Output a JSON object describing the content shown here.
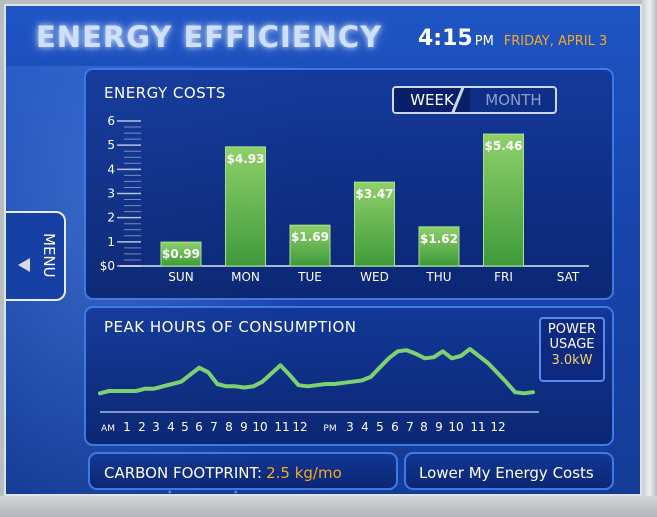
{
  "header": {
    "title": "ENERGY EFFICIENCY",
    "time": "4:15",
    "ampm": "PM",
    "date": "FRIDAY, APRIL 3"
  },
  "menu": {
    "label": "MENU"
  },
  "energy_costs": {
    "title": "ENERGY COSTS",
    "toggle": {
      "week": "WEEK",
      "month": "MONTH",
      "selected": "WEEK"
    }
  },
  "peak_hours": {
    "title": "PEAK HOURS OF CONSUMPTION",
    "power": {
      "line1": "POWER",
      "line2": "USAGE",
      "value": "3.0kW"
    }
  },
  "carbon": {
    "label": "CARBON FOOTPRINT:",
    "value": "2.5 kg/mo"
  },
  "lower_button": {
    "label": "Lower My Energy Costs"
  },
  "colors": {
    "accent": "#f5a91c",
    "bar_top": "#8fd06a",
    "bar_bottom": "#3f9a3a",
    "line": "#7fd070"
  },
  "chart_data": [
    {
      "type": "bar",
      "categories": [
        "SUN",
        "MON",
        "TUE",
        "WED",
        "THU",
        "FRI",
        "SAT"
      ],
      "values": [
        0.99,
        4.93,
        1.69,
        3.47,
        1.62,
        5.46,
        null
      ],
      "data_labels": [
        "$0.99",
        "$4.93",
        "$1.69",
        "$3.47",
        "$1.62",
        "$5.46",
        ""
      ],
      "yticks": [
        "$0",
        "1",
        "2",
        "3",
        "4",
        "5",
        "6"
      ],
      "ylim": [
        0,
        6
      ]
    },
    {
      "type": "line",
      "xticks": [
        "AM",
        "1",
        "2",
        "3",
        "4",
        "5",
        "6",
        "7",
        "8",
        "9",
        "10",
        "11",
        "12",
        "PM",
        "3",
        "4",
        "5",
        "6",
        "7",
        "8",
        "9",
        "10",
        "11",
        "12"
      ],
      "x": [
        0,
        0.5,
        1,
        1.5,
        2,
        2.5,
        3,
        3.5,
        4,
        4.5,
        5,
        5.5,
        6,
        6.5,
        7,
        7.5,
        8,
        8.5,
        9,
        9.5,
        10,
        10.5,
        11,
        11.5,
        12,
        12.5,
        13,
        13.5,
        14,
        14.5,
        15,
        15.5,
        16,
        16.5,
        17,
        17.5,
        18,
        18.5,
        19,
        19.5,
        20,
        20.5,
        21,
        21.5,
        22,
        22.5,
        23,
        23.5,
        24
      ],
      "values": [
        0.5,
        0.6,
        0.6,
        0.6,
        0.6,
        0.7,
        0.7,
        0.8,
        0.9,
        1.0,
        1.3,
        1.6,
        1.4,
        0.9,
        0.8,
        0.8,
        0.75,
        0.8,
        1.0,
        1.35,
        1.7,
        1.3,
        0.85,
        0.8,
        0.85,
        0.9,
        0.9,
        0.95,
        1.0,
        1.05,
        1.2,
        1.6,
        2.0,
        2.3,
        2.35,
        2.2,
        2.0,
        2.05,
        2.3,
        2.0,
        2.1,
        2.4,
        2.1,
        1.8,
        1.4,
        1.0,
        0.55,
        0.5,
        0.55
      ],
      "ylim": [
        0,
        3
      ]
    }
  ]
}
